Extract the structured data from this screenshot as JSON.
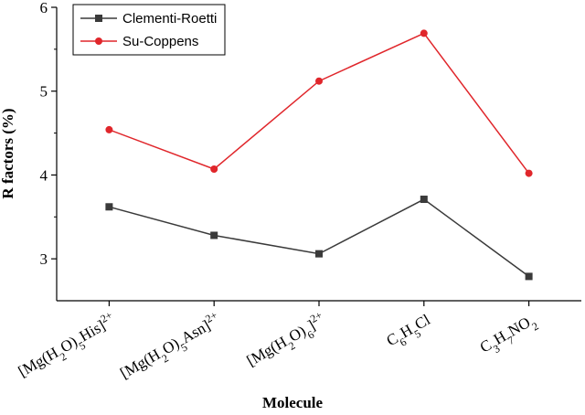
{
  "chart_data": {
    "type": "line",
    "xlabel": "Molecule",
    "ylabel": "R factors (%)",
    "categories": [
      "[Mg(H2O)5His]2+",
      "[Mg(H2O)5Asn]2+",
      "[Mg(H2O)6]2+",
      "C6H5Cl",
      "C3H7NO2"
    ],
    "series": [
      {
        "name": "Clementi-Roetti",
        "color": "#3a3a3a",
        "marker": "square",
        "values": [
          3.62,
          3.28,
          3.06,
          3.71,
          2.79
        ]
      },
      {
        "name": "Su-Coppens",
        "color": "#e0262b",
        "marker": "circle",
        "values": [
          4.54,
          4.07,
          5.12,
          5.69,
          4.02
        ]
      }
    ],
    "ylim": [
      2.5,
      6
    ],
    "yticks": [
      3,
      4,
      5,
      6
    ],
    "legend": "upper left"
  }
}
